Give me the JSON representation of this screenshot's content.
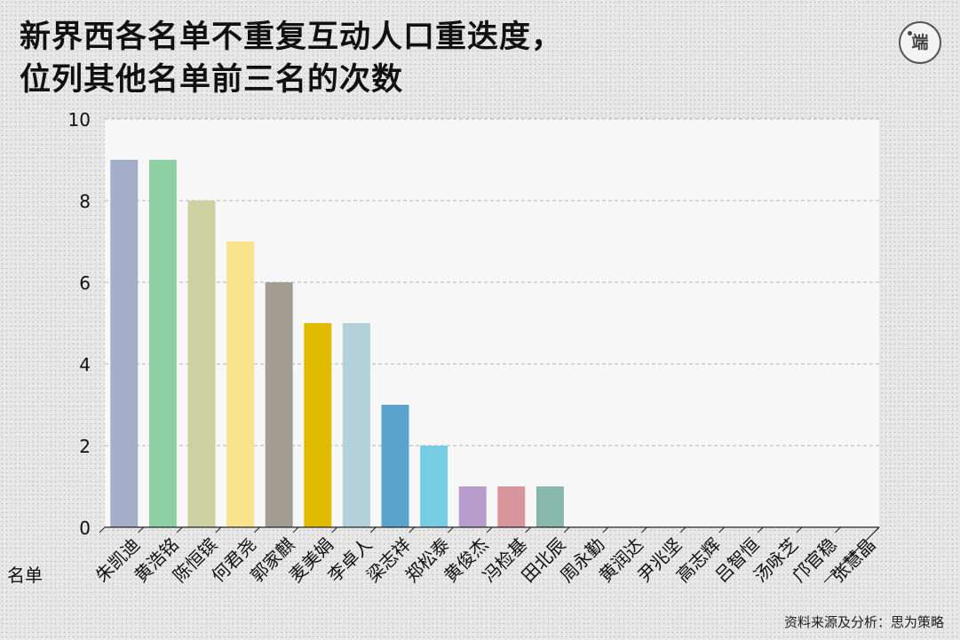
{
  "header": {
    "title_line1": "新界西各名单不重复互动人口重迭度，",
    "title_line2": "位列其他名单前三名的次数",
    "logo_text": "端"
  },
  "footer": {
    "source": "资料来源及分析：思为策略"
  },
  "chart_data": {
    "type": "bar",
    "xlabel": "名单",
    "ylabel": "",
    "ylim": [
      0,
      10
    ],
    "yticks": [
      0,
      2,
      4,
      6,
      8,
      10
    ],
    "grid": true,
    "categories": [
      "朱凯迪",
      "黄浩铭",
      "陈恒镔",
      "何君尧",
      "郭家麒",
      "麦美娟",
      "李卓人",
      "梁志祥",
      "郑松泰",
      "黄俊杰",
      "冯检基",
      "田北辰",
      "周永勤",
      "黄润达",
      "尹兆坚",
      "高志辉",
      "吕智恒",
      "汤咏芝",
      "邝官稳",
      "张慧晶"
    ],
    "values": [
      9,
      9,
      8,
      7,
      6,
      5,
      5,
      3,
      2,
      1,
      1,
      1,
      0,
      0,
      0,
      0,
      0,
      0,
      0,
      0
    ],
    "colors": [
      "#a4aec8",
      "#8ecfa4",
      "#cdd0a0",
      "#f8e48c",
      "#a49e92",
      "#e0bb00",
      "#b4d0d8",
      "#5aa3cf",
      "#74cde3",
      "#b89ccb",
      "#d9959c",
      "#88b8ab",
      "#cccccc",
      "#cccccc",
      "#cccccc",
      "#cccccc",
      "#cccccc",
      "#cccccc",
      "#cccccc",
      "#cccccc"
    ]
  }
}
